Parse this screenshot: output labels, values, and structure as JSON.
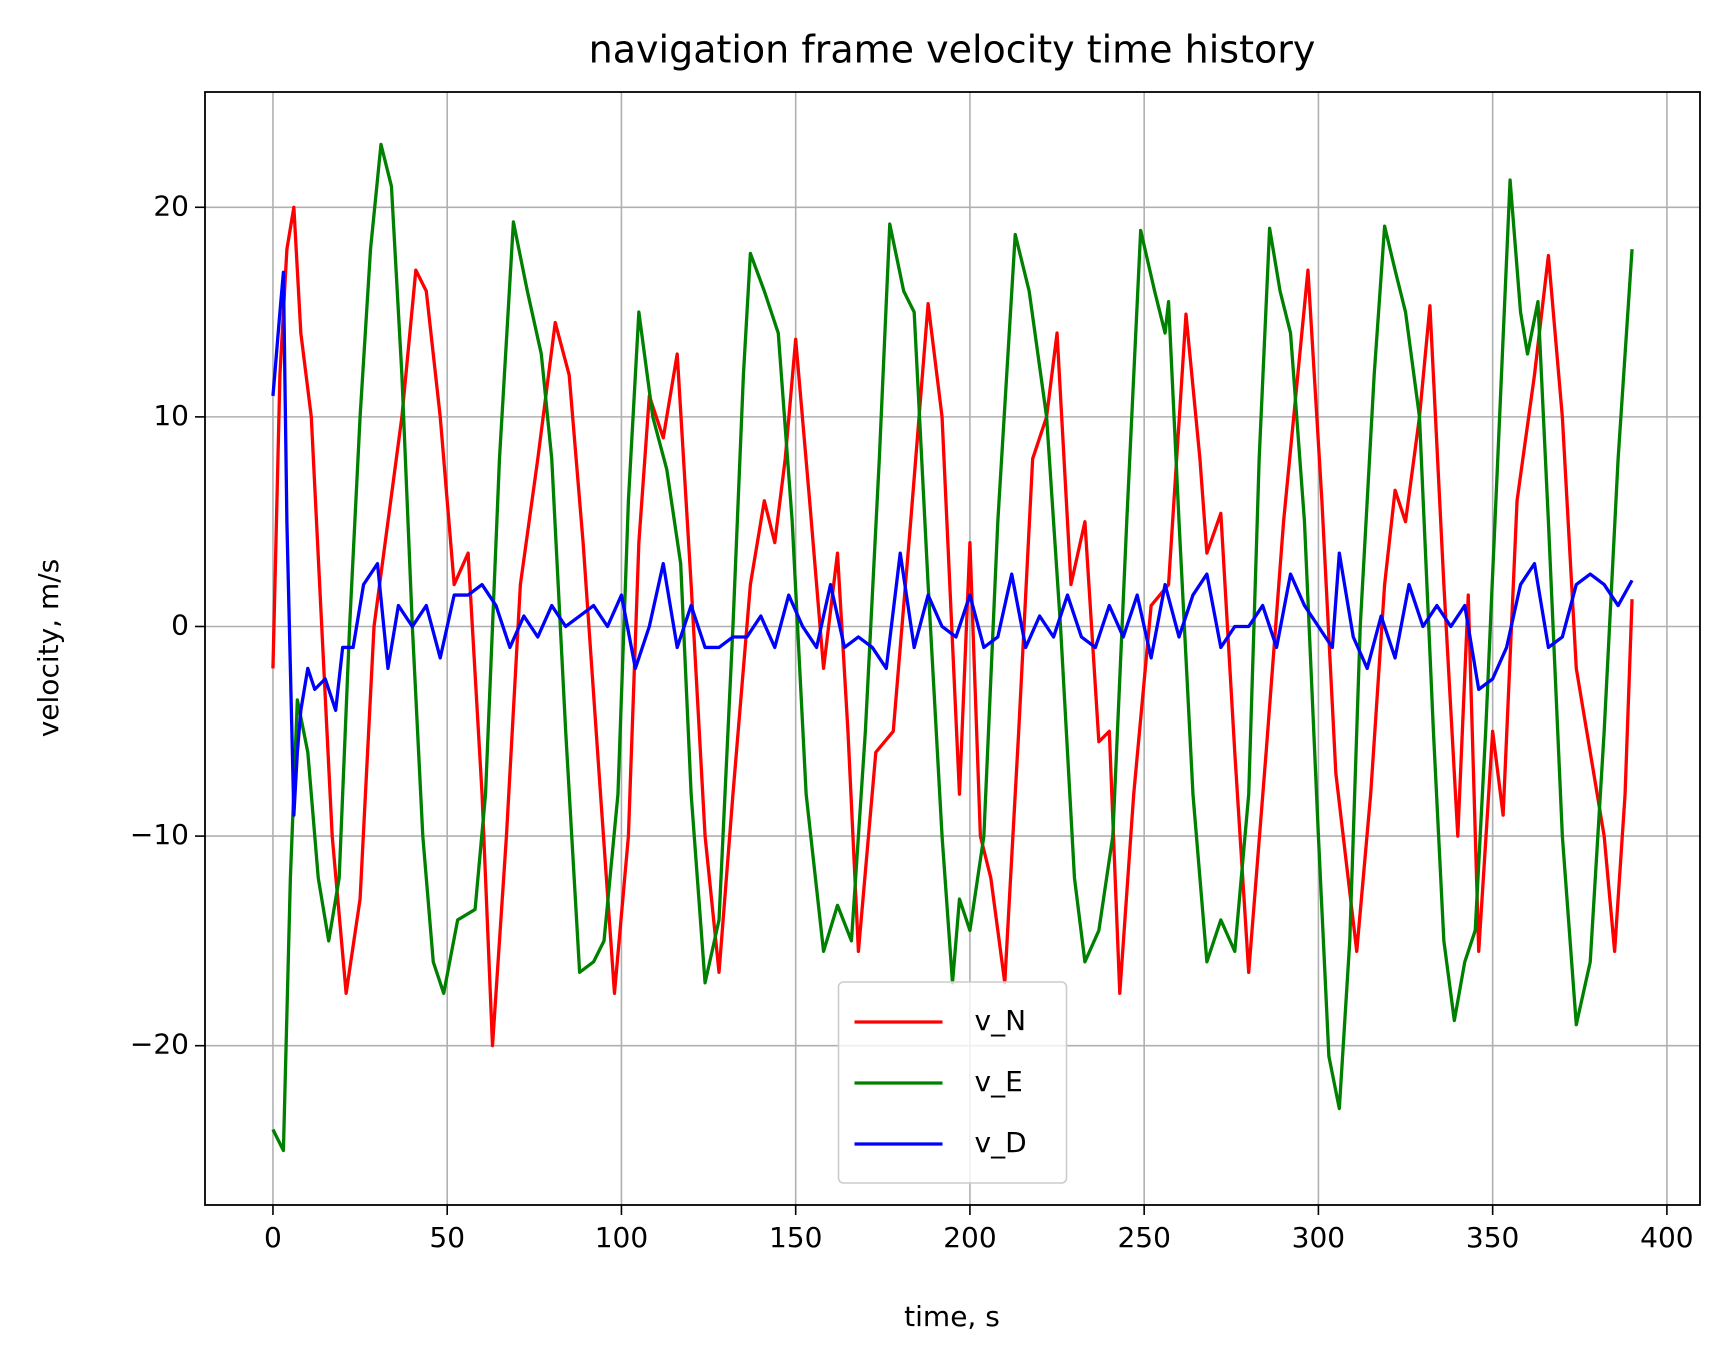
{
  "chart_data": {
    "type": "line",
    "title": "navigation frame velocity time history",
    "xlabel": "time, s",
    "ylabel": "velocity, m/s",
    "xlim": [
      -19.5,
      409.5
    ],
    "ylim": [
      -27.6,
      25.5
    ],
    "xticks": [
      0,
      50,
      100,
      150,
      200,
      250,
      300,
      350,
      400
    ],
    "yticks": [
      {
        "value": -20,
        "label": "−20"
      },
      {
        "value": -10,
        "label": "−10"
      },
      0,
      10,
      20
    ],
    "grid": true,
    "legend": "lower center",
    "series": [
      {
        "name": "v_N",
        "color": "#ff0000",
        "x": [
          0,
          2,
          4,
          6,
          8,
          11,
          14,
          17,
          21,
          25,
          29,
          33,
          37,
          41,
          44,
          48,
          52,
          56,
          60,
          63,
          67,
          71,
          76,
          81,
          85,
          89,
          94,
          98,
          102,
          105,
          108,
          112,
          116,
          120,
          124,
          128,
          132,
          137,
          141,
          144,
          147,
          150,
          154,
          158,
          162,
          165,
          168,
          173,
          178,
          183,
          188,
          192,
          197,
          200,
          203,
          206,
          210,
          214,
          218,
          222,
          225,
          229,
          233,
          237,
          240,
          243,
          247,
          252,
          257,
          262,
          266,
          268,
          272,
          276,
          280,
          285,
          290,
          297,
          301,
          305,
          311,
          315,
          319,
          322,
          325,
          329,
          332,
          336,
          340,
          343,
          346,
          350,
          353,
          357,
          362,
          366,
          370,
          374,
          378,
          382,
          385,
          388,
          390
        ],
        "values": [
          -2,
          12,
          18,
          20,
          14,
          10,
          0,
          -10,
          -17.5,
          -13,
          0,
          5,
          10,
          17,
          16,
          10,
          2,
          3.5,
          -8,
          -20,
          -10,
          2,
          8,
          14.5,
          12,
          4,
          -8,
          -17.5,
          -10,
          4,
          11,
          9,
          13,
          2,
          -10,
          -16.5,
          -8,
          2,
          6,
          4,
          8,
          13.7,
          6,
          -2,
          3.5,
          -5,
          -15.5,
          -6,
          -5,
          5,
          15.4,
          10,
          -8,
          4,
          -10,
          -12,
          -17,
          -5,
          8,
          10,
          14,
          2,
          5,
          -5.5,
          -5,
          -17.5,
          -8,
          1,
          2,
          14.9,
          8,
          3.5,
          5.4,
          -6,
          -16.5,
          -6,
          5,
          17,
          6,
          -7,
          -15.5,
          -8,
          2,
          6.5,
          5,
          10,
          15.3,
          2,
          -10,
          1.5,
          -15.5,
          -5,
          -9,
          6,
          12,
          17.7,
          10,
          -2,
          -6,
          -10,
          -15.5,
          -8,
          1.3
        ]
      },
      {
        "name": "v_E",
        "color": "#008000",
        "x": [
          0,
          3,
          5,
          7,
          10,
          13,
          16,
          19,
          22,
          25,
          28,
          31,
          34,
          37,
          40,
          43,
          46,
          49,
          53,
          58,
          61,
          65,
          69,
          73,
          77,
          80,
          84,
          88,
          92,
          95,
          99,
          102,
          105,
          109,
          113,
          117,
          120,
          124,
          128,
          132,
          135,
          137,
          141,
          145,
          149,
          153,
          158,
          162,
          166,
          170,
          174,
          177,
          181,
          184,
          188,
          192,
          195,
          197,
          200,
          204,
          208,
          213,
          217,
          222,
          226,
          230,
          233,
          237,
          241,
          245,
          249,
          253,
          256,
          257,
          260,
          264,
          268,
          272,
          276,
          280,
          283,
          286,
          289,
          292,
          296,
          300,
          303,
          306,
          309,
          312,
          316,
          319,
          322,
          325,
          329,
          333,
          336,
          339,
          342,
          345,
          348,
          352,
          355,
          358,
          360,
          363,
          366,
          370,
          374,
          378,
          382,
          386,
          390
        ],
        "values": [
          -24,
          -25,
          -12,
          -3.5,
          -6,
          -12,
          -15,
          -12,
          0,
          10,
          18,
          23,
          21,
          12,
          0,
          -10,
          -16,
          -17.5,
          -14,
          -13.5,
          -8,
          8,
          19.3,
          16,
          13,
          8,
          -5,
          -16.5,
          -16,
          -15,
          -8,
          6,
          15,
          10,
          7.5,
          3,
          -8,
          -17,
          -14,
          0,
          12,
          17.8,
          16,
          14,
          5,
          -8,
          -15.5,
          -13.3,
          -15,
          -5,
          8,
          19.2,
          16,
          15,
          2,
          -10,
          -17,
          -13,
          -14.5,
          -10,
          5,
          18.7,
          16,
          10,
          0,
          -12,
          -16,
          -14.5,
          -10,
          5,
          18.9,
          16,
          14,
          15.5,
          5,
          -8,
          -16,
          -14,
          -15.5,
          -8,
          8,
          19,
          16,
          14,
          5,
          -10,
          -20.5,
          -23,
          -15,
          0,
          12,
          19.1,
          17,
          15,
          10,
          -5,
          -15,
          -18.8,
          -16,
          -14.5,
          -5,
          10,
          21.3,
          15,
          13,
          15.5,
          5,
          -10,
          -19,
          -16,
          -5,
          8,
          18
        ]
      },
      {
        "name": "v_D",
        "color": "#0000ff",
        "x": [
          0,
          1,
          2,
          3,
          4,
          5,
          6,
          7,
          8,
          10,
          12,
          15,
          18,
          20,
          23,
          26,
          30,
          33,
          36,
          40,
          44,
          48,
          52,
          56,
          60,
          64,
          68,
          72,
          76,
          80,
          84,
          88,
          92,
          96,
          100,
          104,
          108,
          112,
          116,
          120,
          124,
          128,
          132,
          136,
          140,
          144,
          148,
          152,
          156,
          160,
          164,
          168,
          172,
          176,
          180,
          184,
          188,
          192,
          196,
          200,
          204,
          208,
          212,
          216,
          220,
          224,
          228,
          232,
          236,
          240,
          244,
          248,
          252,
          256,
          260,
          264,
          268,
          272,
          276,
          280,
          284,
          288,
          292,
          296,
          300,
          304,
          306,
          310,
          314,
          318,
          322,
          326,
          330,
          334,
          338,
          342,
          346,
          350,
          354,
          358,
          362,
          366,
          370,
          374,
          378,
          382,
          386,
          390
        ],
        "values": [
          11,
          13,
          15,
          16.9,
          5,
          -2,
          -9,
          -6,
          -4,
          -2,
          -3,
          -2.5,
          -4,
          -1,
          -1,
          2,
          3,
          -2,
          1,
          0,
          1,
          -1.5,
          1.5,
          1.5,
          2,
          1,
          -1,
          0.5,
          -0.5,
          1,
          0,
          0.5,
          1,
          0,
          1.5,
          -2,
          0,
          3,
          -1,
          1,
          -1,
          -1,
          -0.5,
          -0.5,
          0.5,
          -1,
          1.5,
          0,
          -1,
          2,
          -1,
          -0.5,
          -1,
          -2,
          3.5,
          -1,
          1.5,
          0,
          -0.5,
          1.5,
          -1,
          -0.5,
          2.5,
          -1,
          0.5,
          -0.5,
          1.5,
          -0.5,
          -1,
          1,
          -0.5,
          1.5,
          -1.5,
          2,
          -0.5,
          1.5,
          2.5,
          -1,
          0,
          0,
          1,
          -1,
          2.5,
          1,
          0,
          -1,
          3.5,
          -0.5,
          -2,
          0.5,
          -1.5,
          2,
          0,
          1,
          0,
          1,
          -3,
          -2.5,
          -1,
          2,
          3,
          -1,
          -0.5,
          2,
          2.5,
          2,
          1,
          2.2
        ]
      }
    ]
  }
}
